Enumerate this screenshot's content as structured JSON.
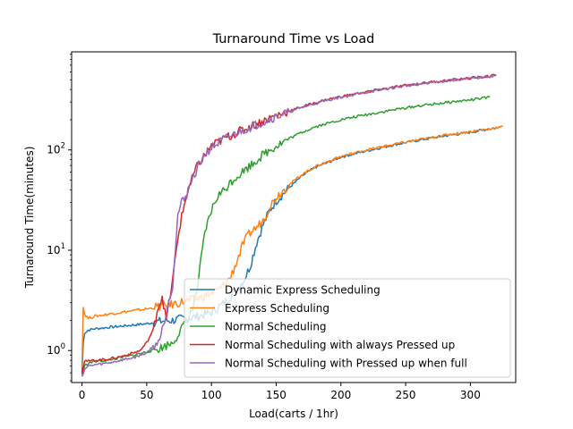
{
  "chart_data": {
    "type": "line",
    "title": "Turnaround Time vs Load",
    "xlabel": "Load(carts / 1hr)",
    "ylabel": "Turnaround Time(minutes)",
    "xlim": [
      -8,
      335
    ],
    "ylim": [
      0.48,
      950
    ],
    "yscale": "log",
    "xticks": [
      0,
      50,
      100,
      150,
      200,
      250,
      300
    ],
    "yticks": [
      {
        "value": 1,
        "base": "10",
        "exp": "0"
      },
      {
        "value": 10,
        "base": "10",
        "exp": "1"
      },
      {
        "value": 100,
        "base": "10",
        "exp": "2"
      }
    ],
    "grid": false,
    "legend_position": "lower right",
    "series": [
      {
        "name": "Dynamic Express Scheduling",
        "color": "#1f77b4",
        "points": [
          [
            0,
            0.6
          ],
          [
            1,
            1.2
          ],
          [
            2,
            1.5
          ],
          [
            5,
            1.6
          ],
          [
            10,
            1.65
          ],
          [
            20,
            1.7
          ],
          [
            30,
            1.75
          ],
          [
            40,
            1.8
          ],
          [
            50,
            1.85
          ],
          [
            60,
            1.95
          ],
          [
            70,
            2.0
          ],
          [
            80,
            2.1
          ],
          [
            90,
            2.2
          ],
          [
            100,
            2.4
          ],
          [
            110,
            3.0
          ],
          [
            115,
            3.5
          ],
          [
            120,
            4.2
          ],
          [
            125,
            5.0
          ],
          [
            130,
            7.0
          ],
          [
            135,
            12
          ],
          [
            140,
            18
          ],
          [
            145,
            25
          ],
          [
            150,
            31
          ],
          [
            160,
            42
          ],
          [
            170,
            55
          ],
          [
            180,
            67
          ],
          [
            190,
            75
          ],
          [
            200,
            85
          ],
          [
            220,
            98
          ],
          [
            240,
            112
          ],
          [
            260,
            125
          ],
          [
            280,
            138
          ],
          [
            300,
            150
          ],
          [
            320,
            167
          ]
        ]
      },
      {
        "name": "Express Scheduling",
        "color": "#ff7f0e",
        "points": [
          [
            0,
            0.7
          ],
          [
            1,
            2.7
          ],
          [
            2,
            2.3
          ],
          [
            5,
            2.1
          ],
          [
            10,
            2.2
          ],
          [
            20,
            2.3
          ],
          [
            30,
            2.4
          ],
          [
            40,
            2.5
          ],
          [
            50,
            2.6
          ],
          [
            60,
            2.75
          ],
          [
            70,
            2.9
          ],
          [
            80,
            3.1
          ],
          [
            90,
            3.3
          ],
          [
            100,
            3.7
          ],
          [
            105,
            4.0
          ],
          [
            110,
            4.5
          ],
          [
            115,
            5.5
          ],
          [
            120,
            8
          ],
          [
            125,
            12
          ],
          [
            130,
            15
          ],
          [
            135,
            17
          ],
          [
            140,
            20
          ],
          [
            145,
            27
          ],
          [
            150,
            34
          ],
          [
            160,
            45
          ],
          [
            170,
            57
          ],
          [
            180,
            68
          ],
          [
            190,
            77
          ],
          [
            200,
            86
          ],
          [
            220,
            100
          ],
          [
            240,
            113
          ],
          [
            260,
            126
          ],
          [
            280,
            140
          ],
          [
            300,
            152
          ],
          [
            325,
            170
          ]
        ]
      },
      {
        "name": "Normal Scheduling",
        "color": "#2ca02c",
        "points": [
          [
            0,
            0.55
          ],
          [
            2,
            0.7
          ],
          [
            5,
            0.75
          ],
          [
            10,
            0.78
          ],
          [
            20,
            0.8
          ],
          [
            30,
            0.85
          ],
          [
            40,
            0.9
          ],
          [
            50,
            0.97
          ],
          [
            60,
            1.05
          ],
          [
            70,
            1.2
          ],
          [
            75,
            1.5
          ],
          [
            80,
            1.9
          ],
          [
            85,
            2.5
          ],
          [
            88,
            3.5
          ],
          [
            90,
            5.0
          ],
          [
            92,
            8.0
          ],
          [
            95,
            15
          ],
          [
            100,
            25
          ],
          [
            105,
            35
          ],
          [
            110,
            40
          ],
          [
            115,
            48
          ],
          [
            120,
            55
          ],
          [
            130,
            70
          ],
          [
            140,
            90
          ],
          [
            150,
            110
          ],
          [
            160,
            130
          ],
          [
            170,
            150
          ],
          [
            180,
            170
          ],
          [
            200,
            200
          ],
          [
            220,
            225
          ],
          [
            240,
            250
          ],
          [
            260,
            275
          ],
          [
            280,
            295
          ],
          [
            300,
            315
          ],
          [
            315,
            335
          ]
        ]
      },
      {
        "name": "Normal Scheduling with always Pressed up",
        "color": "#d62728",
        "points": [
          [
            0,
            0.6
          ],
          [
            2,
            0.8
          ],
          [
            5,
            0.78
          ],
          [
            10,
            0.8
          ],
          [
            20,
            0.82
          ],
          [
            30,
            0.87
          ],
          [
            40,
            0.95
          ],
          [
            45,
            1.0
          ],
          [
            50,
            1.2
          ],
          [
            55,
            1.6
          ],
          [
            58,
            2.5
          ],
          [
            62,
            3.5
          ],
          [
            65,
            2.0
          ],
          [
            70,
            5
          ],
          [
            72,
            8
          ],
          [
            75,
            16
          ],
          [
            78,
            25
          ],
          [
            82,
            40
          ],
          [
            88,
            65
          ],
          [
            95,
            90
          ],
          [
            100,
            110
          ],
          [
            110,
            130
          ],
          [
            120,
            150
          ],
          [
            130,
            170
          ],
          [
            140,
            195
          ],
          [
            150,
            220
          ],
          [
            170,
            270
          ],
          [
            190,
            320
          ],
          [
            210,
            360
          ],
          [
            230,
            400
          ],
          [
            250,
            440
          ],
          [
            270,
            475
          ],
          [
            290,
            505
          ],
          [
            310,
            535
          ],
          [
            320,
            555
          ]
        ]
      },
      {
        "name": "Normal Scheduling with Pressed up when full",
        "color": "#9467bd",
        "points": [
          [
            0,
            0.55
          ],
          [
            2,
            0.65
          ],
          [
            5,
            0.7
          ],
          [
            10,
            0.72
          ],
          [
            20,
            0.75
          ],
          [
            30,
            0.8
          ],
          [
            40,
            0.85
          ],
          [
            50,
            0.95
          ],
          [
            55,
            1.1
          ],
          [
            60,
            1.3
          ],
          [
            63,
            1.8
          ],
          [
            66,
            2.8
          ],
          [
            70,
            4.5
          ],
          [
            72,
            10
          ],
          [
            74,
            22
          ],
          [
            76,
            28
          ],
          [
            80,
            35
          ],
          [
            85,
            50
          ],
          [
            90,
            70
          ],
          [
            95,
            90
          ],
          [
            100,
            105
          ],
          [
            110,
            128
          ],
          [
            120,
            148
          ],
          [
            130,
            168
          ],
          [
            140,
            190
          ],
          [
            150,
            215
          ],
          [
            170,
            265
          ],
          [
            190,
            315
          ],
          [
            210,
            355
          ],
          [
            230,
            395
          ],
          [
            250,
            435
          ],
          [
            270,
            470
          ],
          [
            290,
            500
          ],
          [
            310,
            530
          ],
          [
            320,
            550
          ]
        ]
      }
    ]
  }
}
